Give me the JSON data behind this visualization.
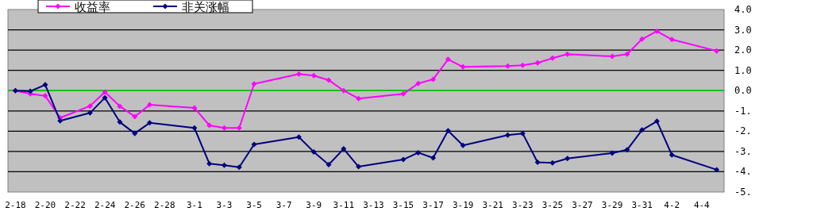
{
  "chart_data": {
    "type": "line",
    "marker": "diamond",
    "line_style": "solid",
    "grid": "y",
    "legend": "top",
    "categories": [
      "2-18",
      null,
      "2-20",
      null,
      "2-22",
      null,
      "2-24",
      null,
      "2-26",
      null,
      "2-28",
      null,
      "3-1",
      null,
      "3-3",
      null,
      "3-5",
      null,
      "3-7",
      null,
      "3-9",
      null,
      "3-11",
      null,
      "3-13",
      null,
      "3-15",
      null,
      "3-17",
      null,
      "3-19",
      null,
      "3-21",
      null,
      "3-23",
      null,
      "3-25",
      null,
      "3-27",
      null,
      "3-29",
      null,
      "3-31",
      null,
      "4-2",
      null,
      "4-4",
      null
    ],
    "ylim": [
      -5,
      4
    ],
    "yticks": [
      {
        "value": 4,
        "label": "4.0"
      },
      {
        "value": 3,
        "label": "3.0"
      },
      {
        "value": 2,
        "label": "2.0"
      },
      {
        "value": 1,
        "label": "1.0"
      },
      {
        "value": 0,
        "label": "0.0"
      },
      {
        "value": -1,
        "label": "-1."
      },
      {
        "value": -2,
        "label": "-2."
      },
      {
        "value": -3,
        "label": "-3."
      },
      {
        "value": -4,
        "label": "-4."
      },
      {
        "value": -5,
        "label": "-5."
      }
    ],
    "ref_lines": [
      {
        "axis": "y",
        "value": 0,
        "label": null,
        "color": "#00ff00"
      }
    ],
    "series": [
      {
        "name": "收益率",
        "color": "#ff00ff",
        "values": [
          0,
          -0.16,
          -0.26,
          -1.34,
          null,
          -0.76,
          -0.07,
          -0.77,
          -1.28,
          -0.7,
          null,
          null,
          -0.85,
          -1.71,
          -1.84,
          -1.84,
          0.33,
          null,
          null,
          0.82,
          0.74,
          0.52,
          0.0,
          -0.39,
          null,
          null,
          -0.16,
          0.35,
          0.56,
          1.54,
          1.17,
          null,
          null,
          1.21,
          1.25,
          1.37,
          1.6,
          1.8,
          null,
          null,
          1.69,
          1.8,
          2.54,
          2.93,
          2.52,
          null,
          null,
          1.96
        ]
      },
      {
        "name": "非关涨幅",
        "color": "#000080",
        "values": [
          0,
          -0.03,
          0.29,
          -1.49,
          null,
          -1.1,
          -0.35,
          -1.55,
          -2.11,
          -1.59,
          null,
          null,
          -1.84,
          -3.6,
          -3.68,
          -3.78,
          -2.65,
          null,
          null,
          -2.29,
          -3.02,
          -3.65,
          -2.87,
          -3.75,
          null,
          null,
          -3.4,
          -3.06,
          -3.32,
          -1.98,
          -2.7,
          null,
          null,
          -2.19,
          -2.11,
          -3.53,
          -3.56,
          -3.35,
          null,
          null,
          -3.08,
          -2.92,
          -1.94,
          -1.51,
          -3.17,
          null,
          null,
          -3.9
        ]
      }
    ]
  }
}
